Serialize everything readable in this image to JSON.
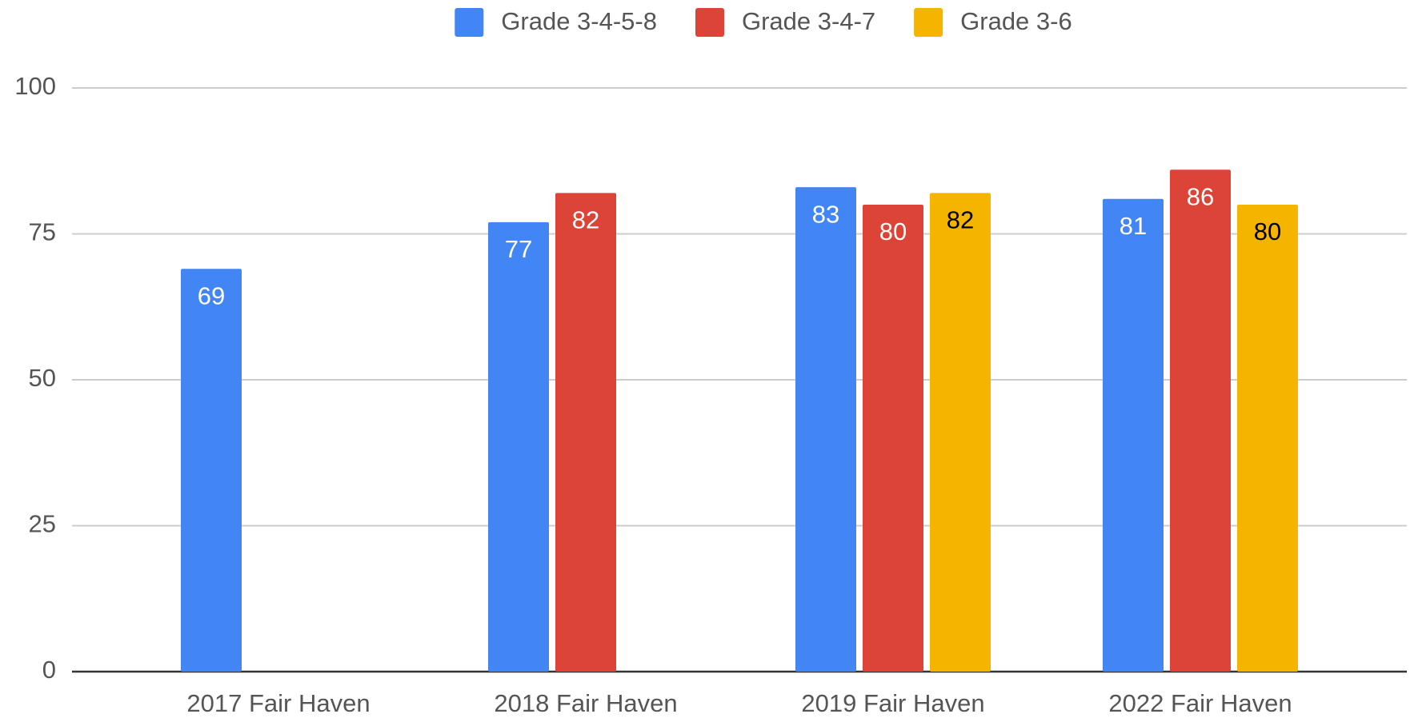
{
  "chart_data": {
    "type": "bar",
    "categories": [
      "2017 Fair Haven",
      "2018 Fair Haven",
      "2019 Fair Haven",
      "2022 Fair Haven"
    ],
    "series": [
      {
        "name": "Grade 3-4-5-8",
        "color": "#4285f4",
        "values": [
          69,
          77,
          83,
          81
        ]
      },
      {
        "name": "Grade 3-4-7",
        "color": "#db4437",
        "values": [
          null,
          82,
          80,
          86
        ]
      },
      {
        "name": "Grade 3-6",
        "color": "#f4b400",
        "values": [
          null,
          null,
          82,
          80
        ]
      }
    ],
    "ylim": [
      0,
      100
    ],
    "yticks": [
      0,
      25,
      50,
      75,
      100
    ],
    "grid": true,
    "legend": "top"
  }
}
